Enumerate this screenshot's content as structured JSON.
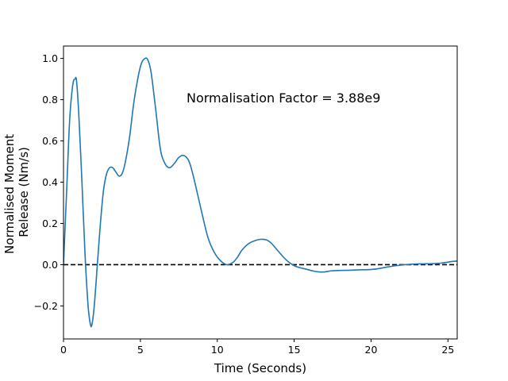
{
  "chart_data": {
    "type": "line",
    "title": "",
    "xlabel": "Time (Seconds)",
    "ylabel_lines": [
      "Normalised Moment",
      "Release (Nm/s)"
    ],
    "xlim": [
      0,
      25.6
    ],
    "ylim": [
      -0.36,
      1.06
    ],
    "x_ticks": [
      0,
      5,
      10,
      15,
      20,
      25
    ],
    "x_tick_labels": [
      "0",
      "5",
      "10",
      "15",
      "20",
      "25"
    ],
    "y_ticks": [
      -0.2,
      0.0,
      0.2,
      0.4,
      0.6,
      0.8,
      1.0
    ],
    "y_tick_labels": [
      "−0.2",
      "0.0",
      "0.2",
      "0.4",
      "0.6",
      "0.8",
      "1.0"
    ],
    "grid": false,
    "annotation": {
      "text": "Normalisation Factor = 3.88e9",
      "x": 8.0,
      "y": 0.81
    },
    "reference_line": {
      "y": 0.0,
      "style": "dashed",
      "color": "#000000"
    },
    "series": [
      {
        "color": "#1f77b4",
        "x": [
          0.0,
          0.2,
          0.4,
          0.6,
          0.75,
          0.85,
          1.0,
          1.2,
          1.4,
          1.6,
          1.75,
          1.85,
          2.0,
          2.2,
          2.4,
          2.6,
          2.8,
          3.0,
          3.2,
          3.4,
          3.6,
          3.8,
          4.0,
          4.3,
          4.6,
          5.0,
          5.3,
          5.5,
          5.7,
          6.0,
          6.3,
          6.6,
          6.9,
          7.2,
          7.5,
          7.8,
          8.1,
          8.3,
          8.6,
          9.0,
          9.4,
          9.8,
          10.2,
          10.6,
          11.0,
          11.3,
          11.6,
          12.0,
          12.4,
          12.8,
          13.2,
          13.5,
          13.8,
          14.2,
          14.6,
          15.0,
          15.4,
          15.8,
          16.2,
          16.6,
          17.0,
          17.4,
          18.0,
          18.6,
          19.2,
          19.8,
          20.4,
          21.0,
          21.6,
          22.2,
          22.8,
          23.4,
          24.0,
          24.6,
          25.2,
          25.6
        ],
        "y": [
          0.0,
          0.35,
          0.7,
          0.87,
          0.9,
          0.89,
          0.72,
          0.4,
          0.05,
          -0.2,
          -0.29,
          -0.29,
          -0.2,
          0.0,
          0.2,
          0.36,
          0.44,
          0.47,
          0.47,
          0.45,
          0.43,
          0.44,
          0.49,
          0.62,
          0.8,
          0.96,
          1.0,
          0.99,
          0.93,
          0.75,
          0.56,
          0.49,
          0.47,
          0.49,
          0.52,
          0.53,
          0.51,
          0.47,
          0.38,
          0.25,
          0.13,
          0.06,
          0.02,
          0.0,
          0.01,
          0.035,
          0.07,
          0.1,
          0.115,
          0.123,
          0.12,
          0.105,
          0.08,
          0.045,
          0.015,
          -0.005,
          -0.015,
          -0.022,
          -0.03,
          -0.035,
          -0.035,
          -0.03,
          -0.028,
          -0.027,
          -0.025,
          -0.024,
          -0.02,
          -0.012,
          -0.005,
          0.0,
          0.003,
          0.004,
          0.005,
          0.008,
          0.015,
          0.018
        ]
      }
    ]
  }
}
